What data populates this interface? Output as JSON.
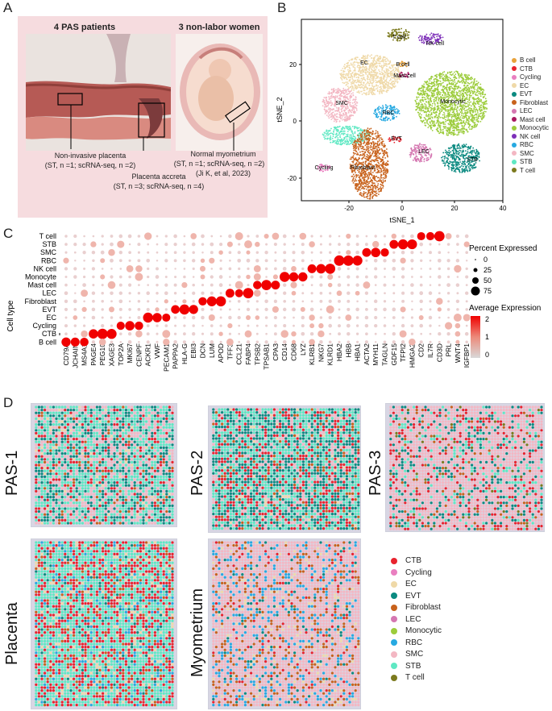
{
  "panels": {
    "a": "A",
    "b": "B",
    "c": "C",
    "d": "D"
  },
  "panel_a": {
    "left_title": "4 PAS patients",
    "right_title": "3 non-labor women",
    "noninvasive": "Non-invasive placenta",
    "noninvasive_n": "(ST, n =1; scRNA-seq, n =2)",
    "accreta": "Placenta accreta",
    "accreta_n": "(ST, n =3;  scRNA-seq, n =4)",
    "myometrium": "Normal myometrium",
    "myometrium_n": "(ST, n =1; scRNA-seq, n =2)",
    "citation": "(Ji K, et al, 2023)"
  },
  "colors": {
    "B cell": "#e8a23a",
    "CTB": "#e8232e",
    "Cycling": "#e97fc0",
    "EC": "#efd9a8",
    "EVT": "#0b8a80",
    "Fibroblast": "#c8621c",
    "LEC": "#d577b1",
    "Mast cell": "#a8185f",
    "Monocytic": "#9ccc3c",
    "NK cell": "#7d2fb8",
    "RBC": "#27a9e1",
    "SMC": "#f3b7c3",
    "STB": "#5fe8c3",
    "T cell": "#7c7a1e"
  },
  "panel_b": {
    "xlabel": "tSNE_1",
    "ylabel": "tSNE_2",
    "xticks": [
      "-20",
      "0",
      "20",
      "40"
    ],
    "yticks": [
      "-20",
      "0",
      "20"
    ],
    "legend": [
      "B cell",
      "CTB",
      "Cycling",
      "EC",
      "EVT",
      "Fibroblast",
      "LEC",
      "Mast cell",
      "Monocytic",
      "NK cell",
      "RBC",
      "SMC",
      "STB",
      "T cell"
    ],
    "cluster_labels": [
      "T cell",
      "NK cell",
      "EC",
      "B cell",
      "Mast cell",
      "SMC",
      "Monocytic",
      "RBC",
      "EVT",
      "STB",
      "LEC",
      "Cycling",
      "Fibroblast"
    ]
  },
  "chart_data": {
    "type": "dotplot",
    "ylabel": "Cell type",
    "rows": [
      "T cell",
      "STB",
      "SMC",
      "RBC",
      "NK cell",
      "Monocyte",
      "Mast cell",
      "LEC",
      "Fibroblast",
      "EVT",
      "EC",
      "Cycling",
      "CTB",
      "B cell"
    ],
    "genes": [
      "CD79A",
      "JCHAIN",
      "MS4A1",
      "PAGE4",
      "PEG10",
      "XAGE3",
      "TOP2A",
      "MKI67",
      "CENPF",
      "ACKR1",
      "VWF",
      "PECAM1",
      "PAPPA2",
      "HLA-G",
      "EBI3",
      "DCN",
      "LUM",
      "APOD",
      "TFF3",
      "CCL21",
      "FABP4",
      "TPSB2",
      "TPSAB1",
      "CPA3",
      "CD14",
      "CD68",
      "LYZ",
      "KLRB1",
      "NKG7",
      "KLRD1",
      "HBA2",
      "HBB",
      "HBA1",
      "ACTA2",
      "MYH11",
      "TAGLN",
      "GDF15",
      "TFPI2",
      "HMGA2",
      "CD2",
      "IL7R",
      "CD3D",
      "PRL",
      "WNT4",
      "IGFBP1"
    ],
    "size_legend_title": "Percent Expressed",
    "size_legend": [
      "0",
      "25",
      "50",
      "75"
    ],
    "color_legend_title": "Average Expression",
    "color_legend": [
      "2",
      "1",
      "0"
    ]
  },
  "panel_d": {
    "samples": [
      "PAS-1",
      "PAS-2",
      "PAS-3",
      "Placenta",
      "Myometrium"
    ],
    "legend": [
      "CTB",
      "Cycling",
      "EC",
      "EVT",
      "Fibroblast",
      "LEC",
      "Monocytic",
      "RBC",
      "SMC",
      "STB",
      "T cell"
    ]
  }
}
